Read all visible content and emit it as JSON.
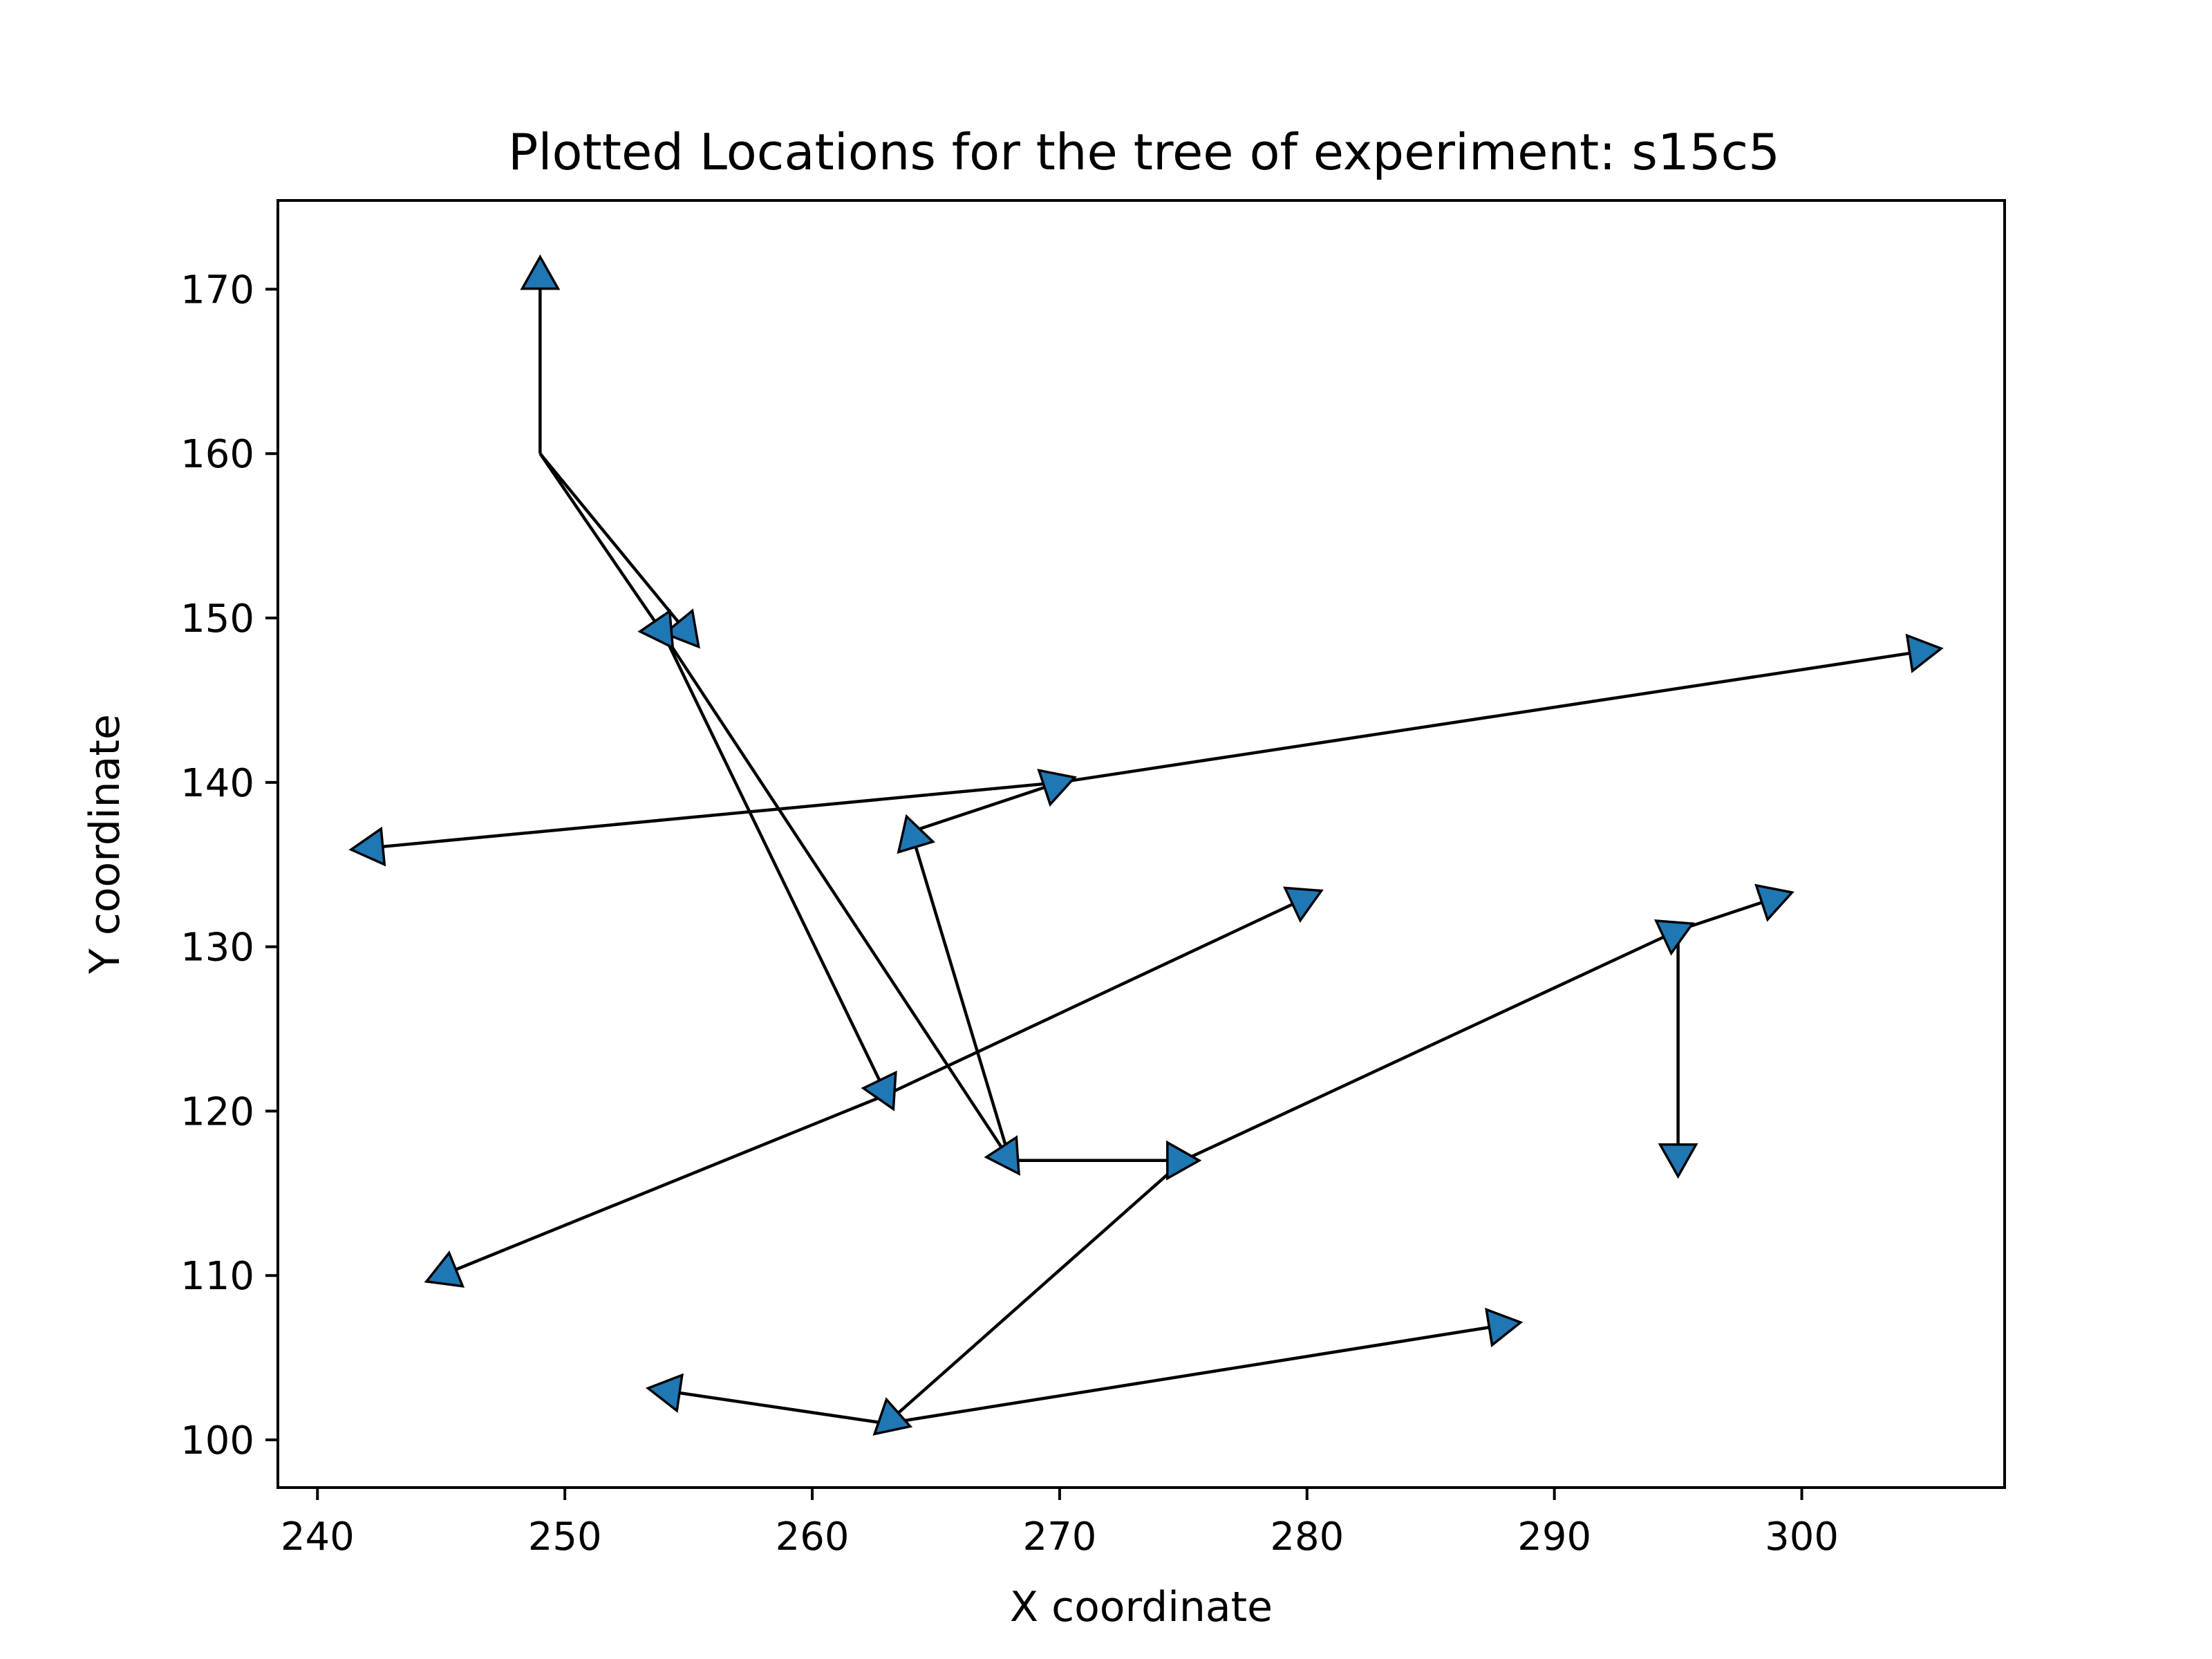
{
  "chart_data": {
    "type": "scatter",
    "title": "Plotted Locations for the tree of experiment: s15c5",
    "xlabel": "X coordinate",
    "ylabel": "Y coordinate",
    "xlim": [
      238.4,
      308.2
    ],
    "ylim": [
      97.1,
      175.4
    ],
    "xticks": [
      240,
      250,
      260,
      270,
      280,
      290,
      300
    ],
    "yticks": [
      100,
      110,
      120,
      130,
      140,
      150,
      160,
      170
    ],
    "grid": false,
    "legend": "none",
    "marker_color": "#1f77b4",
    "line_color": "#000000",
    "segments": [
      {
        "from": [
          249,
          160
        ],
        "to": [
          249,
          171
        ]
      },
      {
        "from": [
          249,
          160
        ],
        "to": [
          255,
          149
        ]
      },
      {
        "from": [
          249,
          160
        ],
        "to": [
          254,
          149
        ]
      },
      {
        "from": [
          254,
          149
        ],
        "to": [
          263,
          121
        ]
      },
      {
        "from": [
          254,
          149
        ],
        "to": [
          268,
          117
        ]
      },
      {
        "from": [
          268,
          117
        ],
        "to": [
          264,
          137
        ]
      },
      {
        "from": [
          264,
          137
        ],
        "to": [
          270,
          140
        ]
      },
      {
        "from": [
          270,
          140
        ],
        "to": [
          242,
          136
        ]
      },
      {
        "from": [
          270,
          140
        ],
        "to": [
          305,
          148
        ]
      },
      {
        "from": [
          268,
          117
        ],
        "to": [
          275,
          117
        ]
      },
      {
        "from": [
          275,
          117
        ],
        "to": [
          263,
          101
        ]
      },
      {
        "from": [
          263,
          101
        ],
        "to": [
          254,
          103
        ]
      },
      {
        "from": [
          263,
          101
        ],
        "to": [
          288,
          107
        ]
      },
      {
        "from": [
          275,
          117
        ],
        "to": [
          295,
          131
        ]
      },
      {
        "from": [
          295,
          131
        ],
        "to": [
          299,
          133
        ]
      },
      {
        "from": [
          295,
          131
        ],
        "to": [
          295,
          117
        ]
      },
      {
        "from": [
          263,
          121
        ],
        "to": [
          245,
          110
        ]
      },
      {
        "from": [
          263,
          121
        ],
        "to": [
          280,
          133
        ]
      }
    ]
  }
}
